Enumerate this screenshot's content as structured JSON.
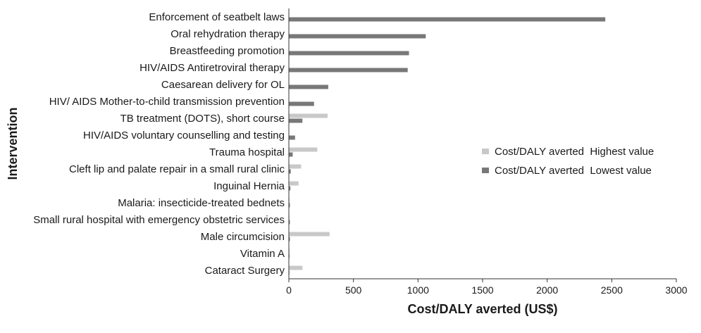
{
  "chart_data": {
    "type": "bar",
    "orientation": "horizontal",
    "xlabel": "Cost/DALY averted (US$)",
    "ylabel": "Intervention",
    "xlim": [
      0,
      3000
    ],
    "xticks": [
      0,
      500,
      1000,
      1500,
      2000,
      2500,
      3000
    ],
    "grid": false,
    "legend_position": "right",
    "categories": [
      "Enforcement of seatbelt laws",
      "Oral rehydration therapy",
      "Breastfeeding promotion",
      "HIV/AIDS Antiretroviral therapy",
      "Caesarean delivery for OL",
      "HIV/ AIDS Mother-to-child transmission prevention",
      "TB treatment (DOTS), short course",
      "HIV/AIDS voluntary counselling and testing",
      "Trauma hospital",
      "Cleft lip and palate repair in a small rural clinic",
      "Inguinal Hernia",
      "Malaria: insecticide-treated bednets",
      "Small rural hospital with emergency obstetric services",
      "Male circumcision",
      "Vitamin A",
      "Cataract Surgery"
    ],
    "series": [
      {
        "name": "Cost/DALY averted  Highest value",
        "color": "#c8c8c8",
        "values": [
          null,
          null,
          null,
          null,
          null,
          null,
          300,
          null,
          220,
          95,
          75,
          5,
          5,
          315,
          5,
          105
        ]
      },
      {
        "name": "Cost/DALY averted  Lowest value",
        "color": "#787878",
        "values": [
          2450,
          1060,
          930,
          920,
          305,
          195,
          105,
          48,
          30,
          15,
          12,
          8,
          8,
          8,
          5,
          3
        ]
      }
    ]
  }
}
